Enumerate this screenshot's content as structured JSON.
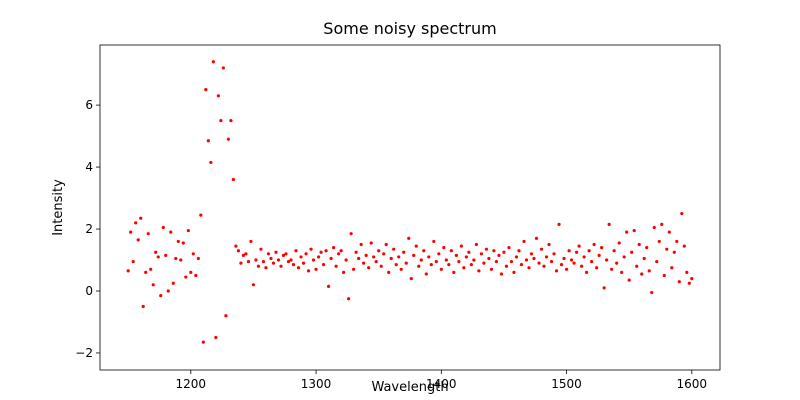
{
  "chart_data": {
    "type": "scatter",
    "title": "Some noisy spectrum",
    "x_label": "Wavelength",
    "y_label": "Intensity",
    "color": "#ff0000",
    "xlim": [
      1127.5,
      1622.5
    ],
    "ylim": [
      -2.55,
      7.94
    ],
    "xticks": [
      1200,
      1300,
      1400,
      1500,
      1600
    ],
    "yticks": [
      {
        "value": -2,
        "label": "−2"
      },
      0,
      2,
      4,
      6
    ],
    "x": [
      1150,
      1152,
      1154,
      1156,
      1158,
      1160,
      1162,
      1164,
      1166,
      1168,
      1170,
      1172,
      1174,
      1176,
      1178,
      1180,
      1182,
      1184,
      1186,
      1188,
      1190,
      1192,
      1194,
      1196,
      1198,
      1200,
      1202,
      1204,
      1206,
      1208,
      1210,
      1212,
      1214,
      1216,
      1218,
      1220,
      1222,
      1224,
      1226,
      1228,
      1230,
      1232,
      1234,
      1236,
      1238,
      1240,
      1242,
      1244,
      1246,
      1248,
      1250,
      1252,
      1254,
      1256,
      1258,
      1260,
      1262,
      1264,
      1266,
      1268,
      1270,
      1272,
      1274,
      1276,
      1278,
      1280,
      1282,
      1284,
      1286,
      1288,
      1290,
      1292,
      1294,
      1296,
      1298,
      1300,
      1302,
      1304,
      1306,
      1308,
      1310,
      1312,
      1314,
      1316,
      1318,
      1320,
      1322,
      1324,
      1326,
      1328,
      1330,
      1332,
      1334,
      1336,
      1338,
      1340,
      1342,
      1344,
      1346,
      1348,
      1350,
      1352,
      1354,
      1356,
      1358,
      1360,
      1362,
      1364,
      1366,
      1368,
      1370,
      1372,
      1374,
      1376,
      1378,
      1380,
      1382,
      1384,
      1386,
      1388,
      1390,
      1392,
      1394,
      1396,
      1398,
      1400,
      1402,
      1404,
      1406,
      1408,
      1410,
      1412,
      1414,
      1416,
      1418,
      1420,
      1422,
      1424,
      1426,
      1428,
      1430,
      1432,
      1434,
      1436,
      1438,
      1440,
      1442,
      1444,
      1446,
      1448,
      1450,
      1452,
      1454,
      1456,
      1458,
      1460,
      1462,
      1464,
      1466,
      1468,
      1470,
      1472,
      1474,
      1476,
      1478,
      1480,
      1482,
      1484,
      1486,
      1488,
      1490,
      1492,
      1494,
      1496,
      1498,
      1500,
      1502,
      1504,
      1506,
      1508,
      1510,
      1512,
      1514,
      1516,
      1518,
      1520,
      1522,
      1524,
      1526,
      1528,
      1530,
      1532,
      1534,
      1536,
      1538,
      1540,
      1542,
      1544,
      1546,
      1548,
      1550,
      1552,
      1554,
      1556,
      1558,
      1560,
      1562,
      1564,
      1566,
      1568,
      1570,
      1572,
      1574,
      1576,
      1578,
      1580,
      1582,
      1584,
      1586,
      1588,
      1590,
      1592,
      1594,
      1596,
      1598,
      1600
    ],
    "values": [
      0.65,
      1.9,
      0.95,
      2.2,
      1.65,
      2.35,
      -0.5,
      0.6,
      1.85,
      0.7,
      0.2,
      1.25,
      1.1,
      -0.15,
      2.05,
      1.15,
      0.0,
      1.9,
      0.25,
      1.05,
      1.6,
      1.0,
      1.55,
      0.45,
      1.95,
      0.6,
      1.2,
      0.5,
      1.05,
      2.45,
      -1.65,
      6.5,
      4.85,
      4.15,
      7.4,
      -1.5,
      6.3,
      5.5,
      7.2,
      -0.8,
      4.9,
      5.5,
      3.6,
      1.45,
      1.3,
      0.9,
      1.15,
      1.2,
      0.95,
      1.6,
      0.2,
      1.0,
      0.8,
      1.35,
      0.95,
      0.75,
      1.2,
      1.05,
      0.9,
      1.25,
      1.0,
      0.8,
      1.15,
      1.2,
      0.95,
      1.0,
      0.85,
      1.3,
      0.75,
      1.1,
      0.9,
      1.2,
      0.65,
      1.35,
      1.0,
      0.7,
      1.1,
      1.25,
      0.85,
      1.3,
      0.15,
      1.05,
      1.4,
      0.8,
      1.2,
      1.3,
      0.6,
      1.0,
      -0.25,
      1.85,
      0.7,
      1.25,
      1.05,
      1.5,
      0.9,
      1.15,
      0.75,
      1.55,
      1.1,
      0.95,
      1.3,
      0.8,
      1.2,
      1.5,
      0.6,
      1.05,
      1.35,
      0.85,
      1.1,
      0.7,
      1.25,
      0.9,
      1.7,
      0.4,
      1.15,
      1.45,
      0.8,
      1.0,
      1.3,
      0.55,
      1.1,
      0.85,
      1.6,
      0.95,
      1.2,
      0.7,
      1.4,
      1.0,
      0.85,
      1.3,
      0.6,
      1.15,
      0.95,
      1.45,
      0.75,
      1.1,
      1.25,
      0.85,
      1.0,
      1.5,
      0.65,
      1.2,
      0.9,
      1.35,
      1.05,
      0.7,
      1.3,
      0.95,
      1.15,
      0.55,
      1.25,
      0.8,
      1.4,
      0.95,
      0.6,
      1.1,
      1.3,
      0.85,
      1.6,
      1.0,
      0.75,
      1.2,
      1.05,
      1.7,
      0.9,
      1.35,
      0.8,
      1.1,
      1.5,
      0.95,
      1.2,
      0.65,
      2.15,
      0.85,
      1.05,
      0.7,
      1.3,
      1.0,
      0.9,
      1.25,
      1.45,
      0.8,
      1.1,
      0.6,
      1.3,
      0.95,
      1.5,
      0.75,
      1.15,
      1.4,
      0.1,
      1.0,
      2.15,
      0.7,
      1.3,
      0.9,
      1.55,
      0.6,
      1.1,
      1.9,
      0.35,
      1.25,
      1.95,
      0.8,
      1.5,
      0.55,
      1.05,
      1.4,
      0.65,
      -0.05,
      2.05,
      0.95,
      1.6,
      2.15,
      0.5,
      1.35,
      1.9,
      0.75,
      1.25,
      1.6,
      0.3,
      2.5,
      1.45,
      0.6,
      0.25,
      0.4
    ]
  }
}
